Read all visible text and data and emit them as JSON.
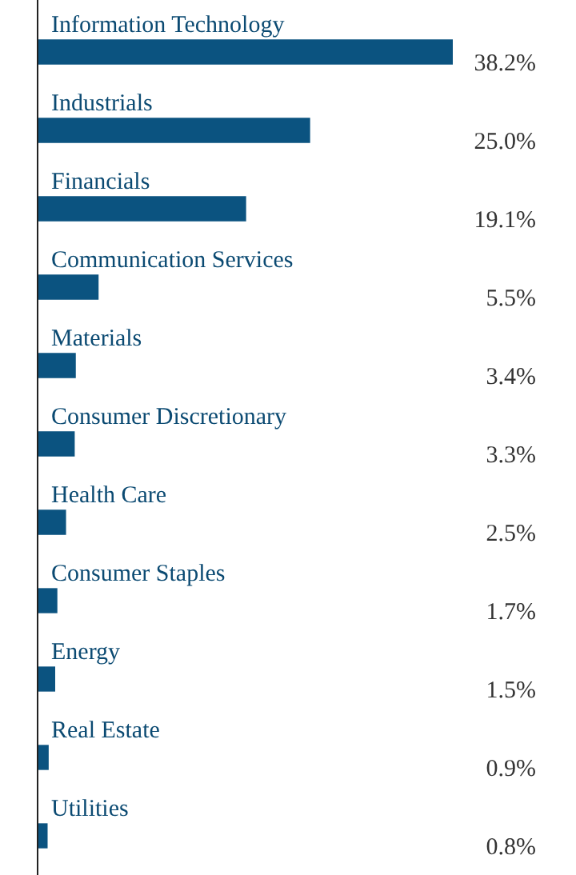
{
  "chart_data": {
    "type": "bar",
    "orientation": "horizontal",
    "categories": [
      "Information Technology",
      "Industrials",
      "Financials",
      "Communication Services",
      "Materials",
      "Consumer Discretionary",
      "Health Care",
      "Consumer Staples",
      "Energy",
      "Real Estate",
      "Utilities"
    ],
    "values": [
      38.2,
      25.0,
      19.1,
      5.5,
      3.4,
      3.3,
      2.5,
      1.7,
      1.5,
      0.9,
      0.8
    ],
    "color": "#0b5380",
    "value_labels": [
      "38.2%",
      "25.0%",
      "19.1%",
      "5.5%",
      "3.4%",
      "3.3%",
      "2.5%",
      "1.7%",
      "1.5%",
      "0.9%",
      "0.8%"
    ]
  }
}
